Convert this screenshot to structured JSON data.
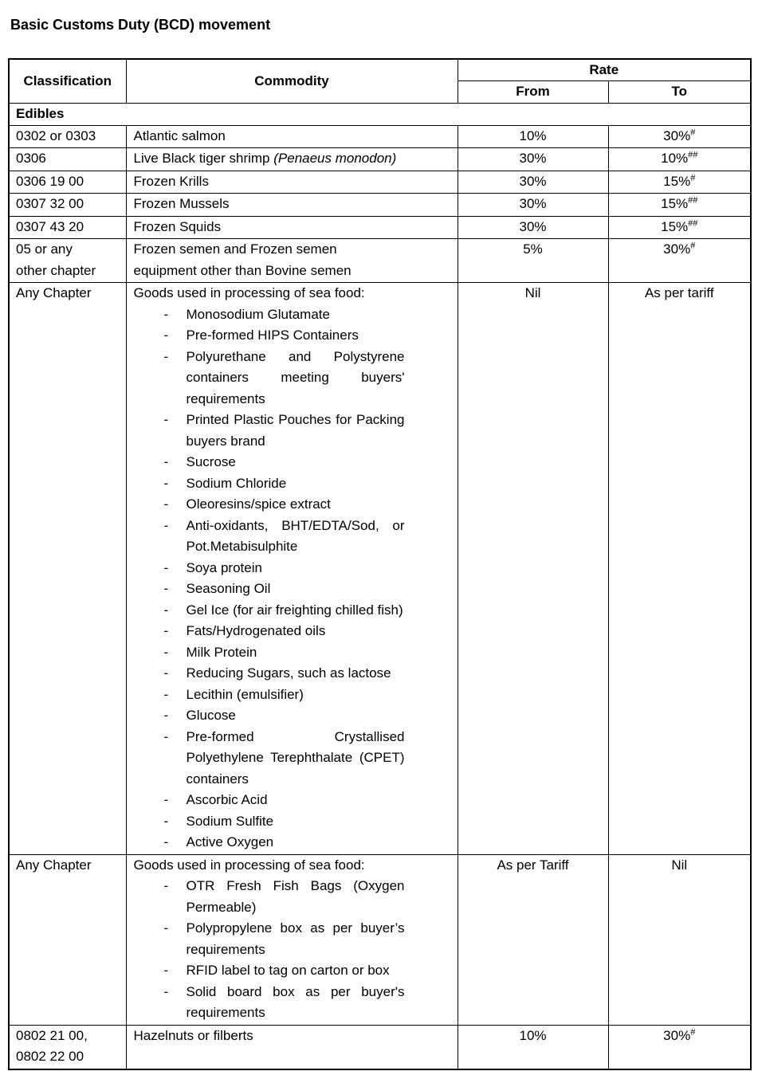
{
  "title": "Basic Customs Duty (BCD) movement",
  "table": {
    "headers": {
      "classification": "Classification",
      "commodity": "Commodity",
      "rate": "Rate",
      "from": "From",
      "to": "To"
    },
    "section": "Edibles",
    "rows": [
      {
        "classification": "0302 or 0303",
        "commodity": {
          "text": "Atlantic salmon"
        },
        "from": {
          "value": "10%"
        },
        "to": {
          "value": "30%",
          "sup": "#"
        }
      },
      {
        "classification": "0306",
        "commodity": {
          "pre": "Live Black tiger shrimp ",
          "italic": "(Penaeus monodon)",
          "post": ""
        },
        "from": {
          "value": "30%"
        },
        "to": {
          "value": "10%",
          "sup": "##"
        }
      },
      {
        "classification": "0306 19 00",
        "commodity": {
          "text": "Frozen Krills"
        },
        "from": {
          "value": "30%"
        },
        "to": {
          "value": "15%",
          "sup": "#"
        }
      },
      {
        "classification": "0307 32 00",
        "commodity": {
          "text": "Frozen Mussels"
        },
        "from": {
          "value": "30%"
        },
        "to": {
          "value": "15%",
          "sup": "##"
        }
      },
      {
        "classification": "0307 43 20",
        "commodity": {
          "text": "Frozen Squids"
        },
        "from": {
          "value": "30%"
        },
        "to": {
          "value": "15%",
          "sup": "##"
        }
      },
      {
        "classification": "05 or any\nother chapter",
        "commodity": {
          "text": "Frozen semen and Frozen semen\nequipment other than Bovine semen"
        },
        "from": {
          "value": "5%"
        },
        "to": {
          "value": "30%",
          "sup": "#"
        }
      },
      {
        "classification": "Any Chapter",
        "commodity": {
          "text": "Goods used in processing of sea food:",
          "items": [
            "Monosodium Glutamate",
            "Pre-formed HIPS Containers",
            "Polyurethane and Polystyrene containers meeting buyers' requirements",
            "Printed Plastic Pouches for Packing buyers brand",
            "Sucrose",
            "Sodium Chloride",
            "Oleoresins/spice extract",
            "Anti-oxidants, BHT/EDTA/Sod, or Pot.Metabisulphite",
            "Soya protein",
            "Seasoning Oil",
            "Gel Ice (for air freighting chilled fish)",
            "Fats/Hydrogenated oils",
            "Milk Protein",
            "Reducing Sugars, such as lactose",
            "Lecithin (emulsifier)",
            "Glucose",
            "Pre-formed Crystallised Polyethylene Terephthalate (CPET) containers",
            "Ascorbic Acid",
            "Sodium Sulfite",
            "Active Oxygen"
          ]
        },
        "from": {
          "value": "Nil"
        },
        "to": {
          "value": "As per tariff"
        }
      },
      {
        "classification": "Any Chapter",
        "commodity": {
          "text": "Goods used in processing of sea food:",
          "items": [
            "OTR Fresh Fish Bags (Oxygen Permeable)",
            "Polypropylene box as per buyer’s requirements",
            "RFID label to tag on carton or box",
            "Solid board box as per buyer's requirements"
          ]
        },
        "from": {
          "value": "As per Tariff"
        },
        "to": {
          "value": "Nil"
        }
      },
      {
        "classification": "0802 21 00,\n0802 22 00",
        "commodity": {
          "text": "Hazelnuts or filberts"
        },
        "from": {
          "value": "10%"
        },
        "to": {
          "value": "30%",
          "sup": "#"
        }
      }
    ]
  }
}
